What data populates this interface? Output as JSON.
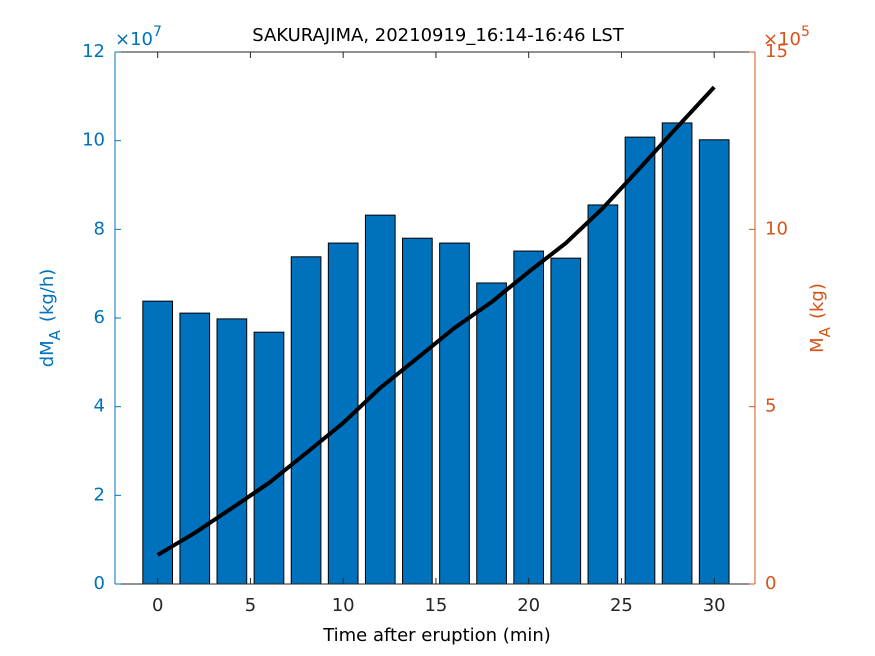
{
  "chart_data": {
    "type": "bar",
    "title": "SAKURAJIMA, 20210919_16:14-16:46 LST",
    "xlabel": "Time after eruption (min)",
    "ylabel": {
      "main": "dM",
      "sub": "A",
      "unit": "(kg/h)"
    },
    "y2label": {
      "main": "M",
      "sub": "A",
      "unit": "(kg)"
    },
    "y_exponent": {
      "base": "×10",
      "power": "7"
    },
    "y2_exponent": {
      "base": "×10",
      "power": "5"
    },
    "x": [
      0,
      2,
      4,
      6,
      8,
      10,
      12,
      14,
      16,
      18,
      20,
      22,
      24,
      26,
      28,
      30
    ],
    "series": [
      {
        "type": "bar",
        "color": "#0072bd",
        "edge_color": "#000000",
        "axis": "y",
        "values": [
          6.38,
          6.11,
          5.98,
          5.68,
          7.38,
          7.69,
          8.32,
          7.8,
          7.69,
          6.79,
          7.51,
          7.35,
          8.55,
          10.08,
          10.4,
          10.02
        ]
      },
      {
        "type": "line",
        "color": "#000000",
        "axis": "y2",
        "values": [
          0.82,
          1.44,
          2.14,
          2.85,
          3.69,
          4.54,
          5.53,
          6.37,
          7.22,
          7.95,
          8.8,
          9.61,
          10.6,
          11.73,
          12.88,
          14.01
        ]
      }
    ],
    "xlim": [
      -2.3,
      32.2
    ],
    "xticks": [
      0,
      5,
      10,
      15,
      20,
      25,
      30
    ],
    "ylim": [
      0,
      12
    ],
    "yticks": [
      0,
      2,
      4,
      6,
      8,
      10,
      12
    ],
    "y_color": "#0072bd",
    "y2lim": [
      0,
      15
    ],
    "y2ticks": [
      0,
      5,
      10,
      15
    ],
    "y2_color": "#d95319"
  }
}
